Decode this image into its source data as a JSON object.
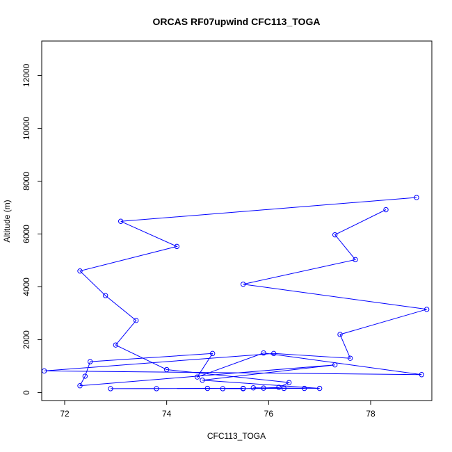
{
  "chart_data": {
    "type": "line",
    "title": "ORCAS RF07upwind CFC113_TOGA",
    "xlabel": "CFC113_TOGA",
    "ylabel": "Altitude (m)",
    "xlim": [
      71.55,
      79.2
    ],
    "ylim": [
      -300,
      13300
    ],
    "xticks": [
      72,
      74,
      76,
      78
    ],
    "yticks": [
      0,
      2000,
      4000,
      6000,
      8000,
      10000,
      12000
    ],
    "grid": false,
    "legend": "none",
    "series": [
      {
        "color": "#0000ff",
        "marker": "open-circle",
        "points": [
          [
            78.9,
            7380
          ],
          [
            73.1,
            6480
          ],
          [
            74.2,
            5530
          ],
          [
            72.3,
            4600
          ],
          [
            72.8,
            3670
          ],
          [
            73.4,
            2730
          ],
          [
            73.0,
            1800
          ],
          [
            74.0,
            870
          ],
          [
            76.4,
            380
          ],
          [
            76.2,
            200
          ],
          [
            75.9,
            170
          ],
          [
            75.5,
            150
          ],
          [
            74.8,
            160
          ],
          [
            72.9,
            150
          ],
          [
            73.8,
            150
          ],
          [
            75.5,
            160
          ],
          [
            75.1,
            150
          ],
          [
            76.3,
            160
          ],
          [
            76.7,
            160
          ],
          [
            75.7,
            180
          ],
          [
            77.0,
            160
          ],
          [
            74.7,
            470
          ],
          [
            77.3,
            1050
          ],
          [
            72.3,
            260
          ],
          [
            72.4,
            620
          ],
          [
            72.5,
            1170
          ],
          [
            74.9,
            1480
          ],
          [
            74.6,
            590
          ],
          [
            75.9,
            1500
          ],
          [
            79.0,
            680
          ],
          [
            71.6,
            820
          ],
          [
            76.1,
            1480
          ],
          [
            77.6,
            1300
          ],
          [
            77.4,
            2200
          ],
          [
            79.1,
            3150
          ],
          [
            75.5,
            4100
          ],
          [
            77.7,
            5030
          ],
          [
            77.3,
            5970
          ],
          [
            78.3,
            6920
          ]
        ]
      }
    ]
  }
}
